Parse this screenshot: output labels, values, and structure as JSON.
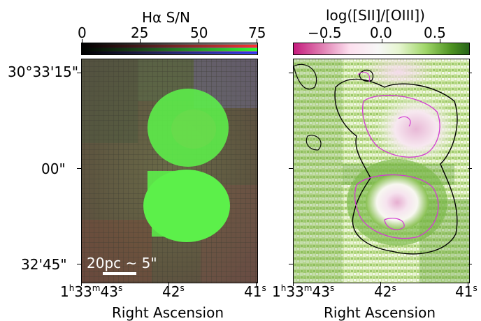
{
  "left_panel": {
    "colorbar_title": "Hα S/N",
    "colorbar_ticks": [
      "0",
      "25",
      "50",
      "75"
    ],
    "colorbar_gradient": [
      "#000000",
      "#333333",
      "#888888",
      "#ff2020",
      "#20ff20",
      "#3030ff"
    ],
    "scale_bar_label": "20pc ~ 5\"",
    "y_ticks": [
      "30°33'15\"",
      "00\"",
      "32'45\""
    ],
    "x_ticks": [
      {
        "main": "1",
        "h": "h",
        "m1": "33",
        "m": "m",
        "s1": "43",
        "s": "s"
      },
      {
        "main": "42",
        "s": "s"
      },
      {
        "main": "41",
        "s": "s"
      }
    ],
    "xlabel": "Right Ascension"
  },
  "right_panel": {
    "colorbar_title": "log([SII]/[OIII])",
    "colorbar_ticks": [
      "−0.5",
      "0.0",
      "0.5"
    ],
    "colorbar_gradient": [
      "#c51b7d",
      "#de77ae",
      "#fde0ef",
      "#f7f7f7",
      "#e6f5d0",
      "#a1d76a",
      "#4d9221",
      "#276419"
    ],
    "x_ticks": [
      {
        "main": "1",
        "h": "h",
        "m1": "33",
        "m": "m",
        "s1": "43",
        "s": "s"
      },
      {
        "main": "42",
        "s": "s"
      },
      {
        "main": "41",
        "s": "s"
      }
    ],
    "xlabel": "Right Ascension"
  },
  "colors": {
    "halpha_green": "#5cf04a",
    "contour_black": "#000000",
    "contour_magenta": "#d23bd2"
  }
}
